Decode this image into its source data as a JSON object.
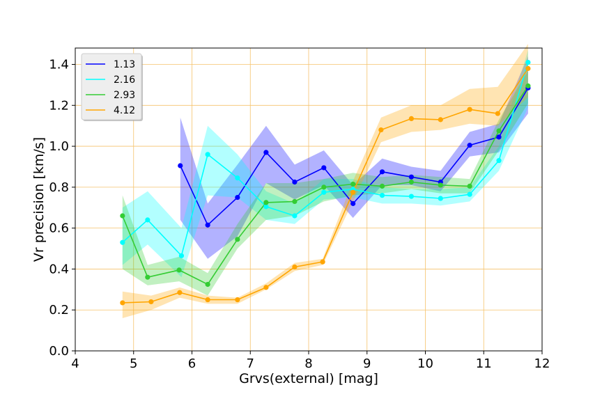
{
  "chart_data": {
    "type": "line",
    "title": "",
    "xlabel": "Grvs(external) [mag]",
    "ylabel": "Vr precision [km/s]",
    "xlim": [
      4,
      12
    ],
    "ylim": [
      0,
      1.48
    ],
    "xticks": [
      "4",
      "5",
      "6",
      "7",
      "8",
      "9",
      "10",
      "11",
      "12"
    ],
    "yticks": [
      "0.0",
      "0.2",
      "0.4",
      "0.6",
      "0.8",
      "1.0",
      "1.2",
      "1.4"
    ],
    "grid": true,
    "grid_color": "#f5c26b",
    "legend_position": "top-left",
    "series": [
      {
        "name": "1.13",
        "color": "#0000ff",
        "x": [
          5.8,
          6.27,
          6.78,
          7.27,
          7.76,
          8.26,
          8.76,
          9.26,
          9.76,
          10.26,
          10.76,
          11.26,
          11.76
        ],
        "y": [
          0.905,
          0.615,
          0.75,
          0.97,
          0.825,
          0.895,
          0.72,
          0.875,
          0.85,
          0.825,
          1.005,
          1.045,
          1.285
        ],
        "lower": [
          0.64,
          0.45,
          0.56,
          0.82,
          0.74,
          0.81,
          0.65,
          0.81,
          0.81,
          0.78,
          0.95,
          0.97,
          1.16
        ],
        "upper": [
          1.14,
          0.72,
          0.91,
          1.1,
          0.91,
          0.98,
          0.81,
          0.94,
          0.9,
          0.88,
          1.07,
          1.11,
          1.44
        ]
      },
      {
        "name": "2.16",
        "color": "#00ffff",
        "x": [
          4.81,
          5.24,
          5.82,
          6.27,
          6.78,
          7.27,
          7.76,
          8.26,
          8.76,
          9.26,
          9.76,
          10.26,
          10.76,
          11.26,
          11.76
        ],
        "y": [
          0.53,
          0.64,
          0.465,
          0.96,
          0.845,
          0.705,
          0.66,
          0.775,
          0.79,
          0.76,
          0.755,
          0.745,
          0.765,
          0.93,
          1.41
        ],
        "lower": [
          0.42,
          0.52,
          0.36,
          0.76,
          0.75,
          0.64,
          0.62,
          0.74,
          0.75,
          0.72,
          0.72,
          0.71,
          0.73,
          0.88,
          1.19
        ],
        "upper": [
          0.7,
          0.78,
          0.6,
          1.1,
          0.96,
          0.78,
          0.72,
          0.84,
          0.84,
          0.8,
          0.79,
          0.79,
          0.8,
          1.0,
          1.47
        ]
      },
      {
        "name": "2.93",
        "color": "#33cc33",
        "x": [
          4.81,
          5.24,
          5.78,
          6.27,
          6.78,
          7.27,
          7.76,
          8.26,
          8.76,
          9.26,
          9.76,
          10.26,
          10.76,
          11.26,
          11.76
        ],
        "y": [
          0.66,
          0.36,
          0.395,
          0.325,
          0.545,
          0.725,
          0.73,
          0.8,
          0.815,
          0.805,
          0.825,
          0.81,
          0.805,
          1.075,
          1.295
        ],
        "lower": [
          0.4,
          0.32,
          0.34,
          0.27,
          0.5,
          0.64,
          0.66,
          0.73,
          0.76,
          0.77,
          0.79,
          0.77,
          0.77,
          0.98,
          1.21
        ],
        "upper": [
          0.76,
          0.42,
          0.46,
          0.38,
          0.62,
          0.82,
          0.82,
          0.84,
          0.87,
          0.85,
          0.86,
          0.85,
          0.84,
          1.13,
          1.37
        ]
      },
      {
        "name": "4.12",
        "color": "#ffa500",
        "x": [
          4.81,
          5.3,
          5.79,
          6.27,
          6.78,
          7.27,
          7.76,
          8.24,
          8.76,
          9.24,
          9.76,
          10.26,
          10.76,
          11.24,
          11.76
        ],
        "y": [
          0.235,
          0.24,
          0.285,
          0.25,
          0.25,
          0.31,
          0.41,
          0.435,
          0.775,
          1.08,
          1.135,
          1.13,
          1.18,
          1.16,
          1.38
        ],
        "lower": [
          0.16,
          0.2,
          0.26,
          0.23,
          0.23,
          0.3,
          0.39,
          0.42,
          0.73,
          1.02,
          1.07,
          1.08,
          1.11,
          1.1,
          1.24
        ],
        "upper": [
          0.29,
          0.27,
          0.31,
          0.27,
          0.26,
          0.33,
          0.43,
          0.45,
          0.83,
          1.14,
          1.2,
          1.2,
          1.28,
          1.29,
          1.5
        ]
      }
    ]
  }
}
